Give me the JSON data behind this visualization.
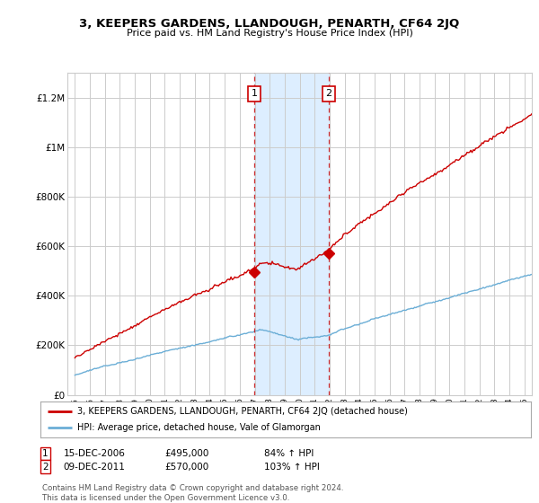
{
  "title": "3, KEEPERS GARDENS, LLANDOUGH, PENARTH, CF64 2JQ",
  "subtitle": "Price paid vs. HM Land Registry's House Price Index (HPI)",
  "legend_line1": "3, KEEPERS GARDENS, LLANDOUGH, PENARTH, CF64 2JQ (detached house)",
  "legend_line2": "HPI: Average price, detached house, Vale of Glamorgan",
  "transaction1_date": "15-DEC-2006",
  "transaction1_price": "£495,000",
  "transaction1_hpi": "84% ↑ HPI",
  "transaction1_year": 2006.96,
  "transaction1_value": 495000,
  "transaction2_date": "09-DEC-2011",
  "transaction2_price": "£570,000",
  "transaction2_hpi": "103% ↑ HPI",
  "transaction2_year": 2011.94,
  "transaction2_value": 570000,
  "footer": "Contains HM Land Registry data © Crown copyright and database right 2024.\nThis data is licensed under the Open Government Licence v3.0.",
  "hpi_color": "#6baed6",
  "price_color": "#cc0000",
  "highlight_color": "#ddeeff",
  "ylim_min": 0,
  "ylim_max": 1300000,
  "xlim_min": 1994.5,
  "xlim_max": 2025.5,
  "background_color": "#ffffff",
  "grid_color": "#cccccc"
}
